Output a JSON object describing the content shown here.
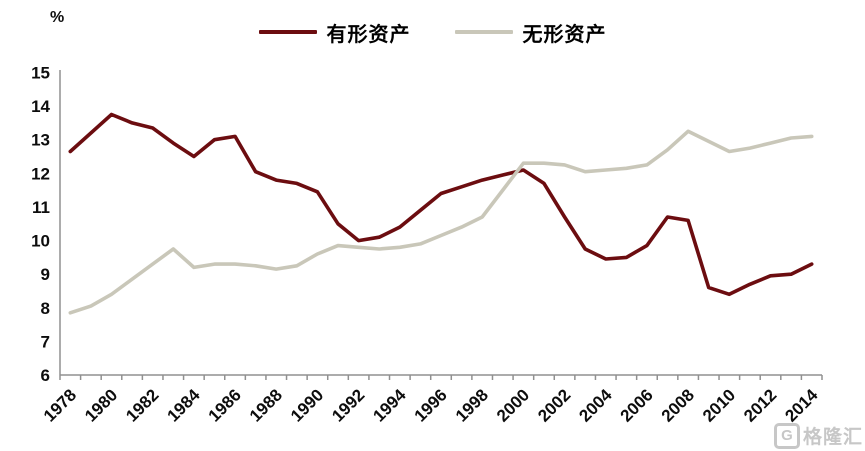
{
  "chart": {
    "unit_label": "%"
  },
  "watermark": {
    "text": "格隆汇"
  },
  "chart_data": {
    "type": "line",
    "title": "",
    "xlabel": "",
    "ylabel": "%",
    "x": [
      1978,
      1979,
      1980,
      1981,
      1982,
      1983,
      1984,
      1985,
      1986,
      1987,
      1988,
      1989,
      1990,
      1991,
      1992,
      1993,
      1994,
      1995,
      1996,
      1997,
      1998,
      1999,
      2000,
      2001,
      2002,
      2003,
      2004,
      2005,
      2006,
      2007,
      2008,
      2009,
      2010,
      2011,
      2012,
      2013,
      2014
    ],
    "series": [
      {
        "name": "有形资产",
        "color": "#6C0D10",
        "values": [
          12.65,
          13.2,
          13.75,
          13.5,
          13.35,
          12.9,
          12.5,
          13.0,
          13.1,
          12.05,
          11.8,
          11.7,
          11.45,
          10.5,
          10.0,
          10.1,
          10.4,
          10.9,
          11.4,
          11.6,
          11.8,
          11.95,
          12.1,
          11.7,
          10.7,
          9.75,
          9.45,
          9.5,
          9.85,
          10.7,
          10.6,
          8.6,
          8.4,
          8.7,
          8.95,
          9.0,
          9.3
        ]
      },
      {
        "name": "无形资产",
        "color": "#C9C7B9",
        "values": [
          7.85,
          8.05,
          8.4,
          8.85,
          9.3,
          9.75,
          9.2,
          9.3,
          9.3,
          9.25,
          9.15,
          9.25,
          9.6,
          9.85,
          9.8,
          9.75,
          9.8,
          9.9,
          10.15,
          10.4,
          10.7,
          11.5,
          12.3,
          12.3,
          12.25,
          12.05,
          12.1,
          12.15,
          12.25,
          12.7,
          13.25,
          12.95,
          12.65,
          12.75,
          12.9,
          13.05,
          13.1
        ]
      }
    ],
    "ylim": [
      6,
      15
    ],
    "ytick_step": 1,
    "xtick_label_step": 2,
    "xtick_label_rotation_deg": -45,
    "grid": "off",
    "legend_position": "top-center",
    "axis_color": "#909090",
    "tick_label_color": "#0D0D0D"
  }
}
